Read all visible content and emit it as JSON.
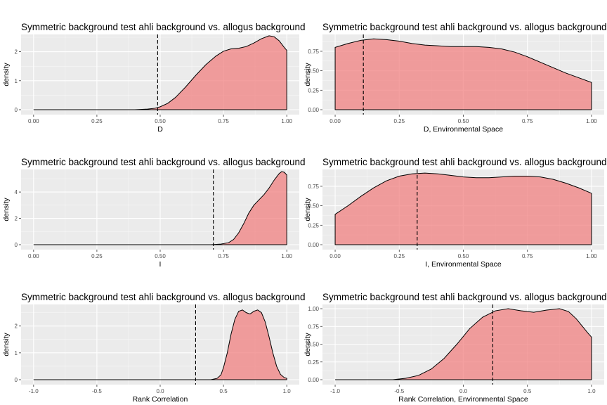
{
  "style": {
    "panel_bg": "#ebebeb",
    "grid_color": "#ffffff",
    "fill_color": "#f08080",
    "line_color": "#000000"
  },
  "chart_data": [
    {
      "type": "area",
      "title": "Symmetric background test ahli background vs. allogus background",
      "xlabel": "D",
      "ylabel": "density",
      "xlim": [
        0.0,
        1.0
      ],
      "ylim": [
        0,
        2.5
      ],
      "xticks": [
        0.0,
        0.25,
        0.5,
        0.75,
        1.0
      ],
      "xtick_labels": [
        "0.00",
        "0.25",
        "0.50",
        "0.75",
        "1.00"
      ],
      "yticks": [
        0,
        1,
        2
      ],
      "ytick_labels": [
        "0",
        "1",
        "2"
      ],
      "grid": true,
      "observed_value": 0.49,
      "density": {
        "x": [
          0.0,
          0.4,
          0.45,
          0.48,
          0.5,
          0.53,
          0.56,
          0.6,
          0.64,
          0.68,
          0.72,
          0.75,
          0.78,
          0.81,
          0.84,
          0.87,
          0.9,
          0.93,
          0.95,
          0.97,
          0.99,
          1.0
        ],
        "y": [
          0.0,
          0.0,
          0.02,
          0.05,
          0.1,
          0.22,
          0.42,
          0.78,
          1.18,
          1.55,
          1.85,
          2.02,
          2.1,
          2.12,
          2.18,
          2.3,
          2.45,
          2.55,
          2.52,
          2.38,
          2.15,
          2.05
        ]
      }
    },
    {
      "type": "area",
      "title": "Symmetric background test ahli background vs. allogus background",
      "xlabel": "D, Environmental Space",
      "ylabel": "density",
      "xlim": [
        0.0,
        1.0
      ],
      "ylim": [
        0,
        0.93
      ],
      "xticks": [
        0.0,
        0.25,
        0.5,
        0.75,
        1.0
      ],
      "xtick_labels": [
        "0.00",
        "0.25",
        "0.50",
        "0.75",
        "1.00"
      ],
      "yticks": [
        0.0,
        0.25,
        0.5,
        0.75
      ],
      "ytick_labels": [
        "0.00",
        "0.25",
        "0.50",
        "0.75"
      ],
      "grid": true,
      "observed_value": 0.11,
      "density": {
        "x": [
          0.0,
          0.05,
          0.1,
          0.15,
          0.2,
          0.25,
          0.3,
          0.35,
          0.4,
          0.45,
          0.5,
          0.55,
          0.6,
          0.65,
          0.7,
          0.75,
          0.8,
          0.85,
          0.9,
          0.95,
          1.0
        ],
        "y": [
          0.8,
          0.85,
          0.89,
          0.91,
          0.9,
          0.88,
          0.85,
          0.83,
          0.82,
          0.81,
          0.81,
          0.81,
          0.8,
          0.78,
          0.74,
          0.68,
          0.61,
          0.54,
          0.47,
          0.41,
          0.35
        ]
      }
    },
    {
      "type": "area",
      "title": "Symmetric background test ahli background vs. allogus background",
      "xlabel": "I",
      "ylabel": "density",
      "xlim": [
        0.0,
        1.0
      ],
      "ylim": [
        0,
        5.5
      ],
      "xticks": [
        0.0,
        0.25,
        0.5,
        0.75,
        1.0
      ],
      "xtick_labels": [
        "0.00",
        "0.25",
        "0.50",
        "0.75",
        "1.00"
      ],
      "yticks": [
        0,
        2,
        4
      ],
      "ytick_labels": [
        "0",
        "2",
        "4"
      ],
      "grid": true,
      "observed_value": 0.71,
      "density": {
        "x": [
          0.0,
          0.7,
          0.74,
          0.77,
          0.79,
          0.81,
          0.83,
          0.85,
          0.87,
          0.89,
          0.91,
          0.93,
          0.95,
          0.97,
          0.98,
          0.99,
          1.0
        ],
        "y": [
          0.0,
          0.0,
          0.05,
          0.15,
          0.4,
          0.9,
          1.6,
          2.4,
          3.0,
          3.4,
          3.8,
          4.3,
          4.9,
          5.4,
          5.55,
          5.5,
          5.3
        ]
      }
    },
    {
      "type": "area",
      "title": "Symmetric background test ahli background vs. allogus background",
      "xlabel": "I, Environmental Space",
      "ylabel": "density",
      "xlim": [
        0.0,
        1.0
      ],
      "ylim": [
        0,
        0.93
      ],
      "xticks": [
        0.0,
        0.25,
        0.5,
        0.75,
        1.0
      ],
      "xtick_labels": [
        "0.00",
        "0.25",
        "0.50",
        "0.75",
        "1.00"
      ],
      "yticks": [
        0.0,
        0.25,
        0.5,
        0.75
      ],
      "ytick_labels": [
        "0.00",
        "0.25",
        "0.50",
        "0.75"
      ],
      "grid": true,
      "observed_value": 0.32,
      "density": {
        "x": [
          0.0,
          0.05,
          0.1,
          0.15,
          0.2,
          0.25,
          0.3,
          0.35,
          0.4,
          0.45,
          0.5,
          0.55,
          0.6,
          0.65,
          0.7,
          0.75,
          0.8,
          0.85,
          0.9,
          0.95,
          1.0
        ],
        "y": [
          0.39,
          0.5,
          0.62,
          0.73,
          0.82,
          0.88,
          0.91,
          0.92,
          0.91,
          0.89,
          0.87,
          0.86,
          0.86,
          0.87,
          0.88,
          0.88,
          0.87,
          0.84,
          0.79,
          0.73,
          0.66
        ]
      }
    },
    {
      "type": "area",
      "title": "Symmetric background test ahli background vs. allogus background",
      "xlabel": "Rank Correlation",
      "ylabel": "density",
      "xlim": [
        -1.0,
        1.0
      ],
      "ylim": [
        0,
        2.7
      ],
      "xticks": [
        -1.0,
        -0.5,
        0.0,
        0.5,
        1.0
      ],
      "xtick_labels": [
        "-1.0",
        "-0.5",
        "0.0",
        "0.5",
        "1.0"
      ],
      "yticks": [
        0,
        1,
        2
      ],
      "ytick_labels": [
        "0",
        "1",
        "2"
      ],
      "grid": true,
      "observed_value": 0.28,
      "density": {
        "x": [
          -1.0,
          0.4,
          0.45,
          0.48,
          0.5,
          0.53,
          0.56,
          0.59,
          0.62,
          0.65,
          0.68,
          0.71,
          0.74,
          0.77,
          0.8,
          0.83,
          0.86,
          0.89,
          0.92,
          0.95,
          0.98,
          1.0
        ],
        "y": [
          0.0,
          0.0,
          0.05,
          0.18,
          0.45,
          1.0,
          1.7,
          2.25,
          2.55,
          2.6,
          2.5,
          2.45,
          2.55,
          2.6,
          2.5,
          2.15,
          1.6,
          1.0,
          0.5,
          0.2,
          0.08,
          0.05
        ]
      }
    },
    {
      "type": "area",
      "title": "Symmetric background test ahli background vs. allogus background",
      "xlabel": "Rank Correlation, Environmental Space",
      "ylabel": "density",
      "xlim": [
        -1.0,
        1.0
      ],
      "ylim": [
        0,
        1.02
      ],
      "xticks": [
        -1.0,
        -0.5,
        0.0,
        0.5,
        1.0
      ],
      "xtick_labels": [
        "-1.0",
        "-0.5",
        "0.0",
        "0.5",
        "1.0"
      ],
      "yticks": [
        0.0,
        0.25,
        0.5,
        0.75,
        1.0
      ],
      "ytick_labels": [
        "0.00",
        "0.25",
        "0.50",
        "0.75",
        "1.00"
      ],
      "grid": true,
      "observed_value": 0.23,
      "density": {
        "x": [
          -1.0,
          -0.55,
          -0.45,
          -0.35,
          -0.25,
          -0.15,
          -0.05,
          0.05,
          0.15,
          0.25,
          0.35,
          0.45,
          0.55,
          0.65,
          0.75,
          0.82,
          0.88,
          0.93,
          0.97,
          1.0
        ],
        "y": [
          0.0,
          0.0,
          0.02,
          0.06,
          0.15,
          0.3,
          0.5,
          0.72,
          0.88,
          0.97,
          1.0,
          0.97,
          0.95,
          0.98,
          1.0,
          0.96,
          0.86,
          0.75,
          0.66,
          0.6
        ]
      }
    }
  ]
}
